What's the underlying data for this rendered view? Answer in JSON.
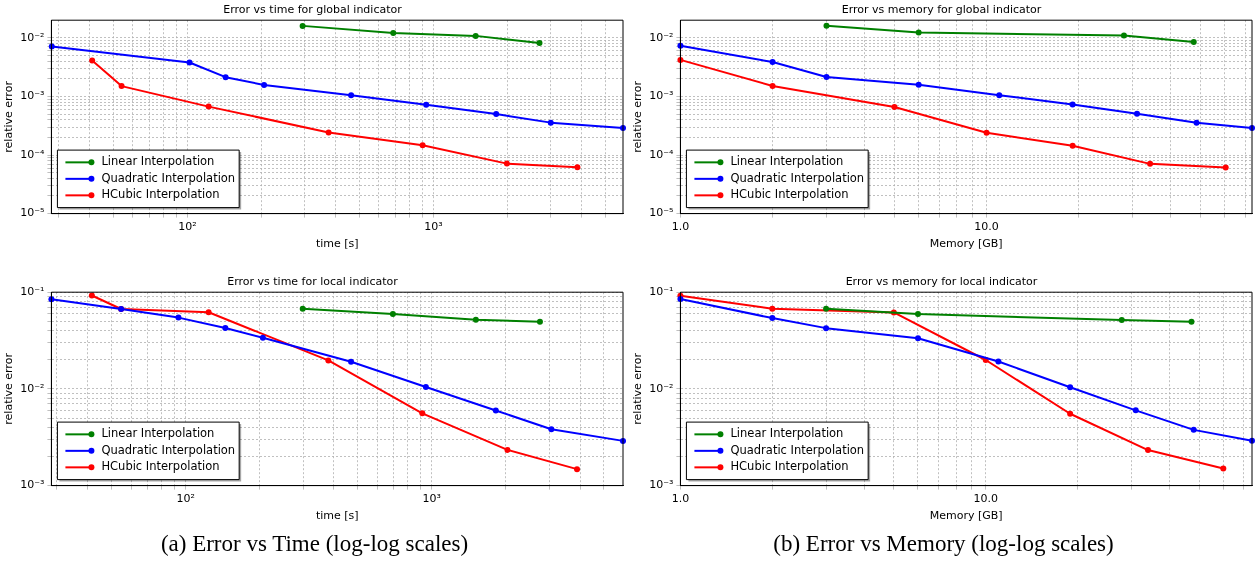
{
  "chart_data": [
    {
      "type": "line",
      "title": "Error vs time for global indicator",
      "xlabel": "time [s]",
      "ylabel": "relative error",
      "log": "xy",
      "grid": true,
      "legend": "bottom left",
      "marker": "circle",
      "line_style": "solid",
      "xlim": [
        28,
        5900
      ],
      "ylim": [
        1e-05,
        0.02
      ],
      "xticks": [
        {
          "value": 30,
          "label": null
        },
        {
          "value": 40,
          "label": null
        },
        {
          "value": 50,
          "label": null
        },
        {
          "value": 60,
          "label": null
        },
        {
          "value": 70,
          "label": null
        },
        {
          "value": 80,
          "label": null
        },
        {
          "value": 90,
          "label": null
        },
        {
          "value": 100,
          "label": "10²"
        },
        {
          "value": 200,
          "label": null
        },
        {
          "value": 300,
          "label": null
        },
        {
          "value": 400,
          "label": null
        },
        {
          "value": 500,
          "label": null
        },
        {
          "value": 600,
          "label": null
        },
        {
          "value": 700,
          "label": null
        },
        {
          "value": 800,
          "label": null
        },
        {
          "value": 900,
          "label": null
        },
        {
          "value": 1000,
          "label": "10³"
        },
        {
          "value": 2000,
          "label": null
        },
        {
          "value": 3000,
          "label": null
        },
        {
          "value": 4000,
          "label": null
        },
        {
          "value": 5000,
          "label": null
        }
      ],
      "yticks": [
        {
          "value": 1e-05,
          "label": "10⁻⁵"
        },
        {
          "value": 2e-05,
          "label": null
        },
        {
          "value": 3e-05,
          "label": null
        },
        {
          "value": 4e-05,
          "label": null
        },
        {
          "value": 5e-05,
          "label": null
        },
        {
          "value": 6e-05,
          "label": null
        },
        {
          "value": 7e-05,
          "label": null
        },
        {
          "value": 8e-05,
          "label": null
        },
        {
          "value": 9e-05,
          "label": null
        },
        {
          "value": 0.0001,
          "label": "10⁻⁴"
        },
        {
          "value": 0.0002,
          "label": null
        },
        {
          "value": 0.0003,
          "label": null
        },
        {
          "value": 0.0004,
          "label": null
        },
        {
          "value": 0.0005,
          "label": null
        },
        {
          "value": 0.0006,
          "label": null
        },
        {
          "value": 0.0007,
          "label": null
        },
        {
          "value": 0.0008,
          "label": null
        },
        {
          "value": 0.0009,
          "label": null
        },
        {
          "value": 0.001,
          "label": "10⁻³"
        },
        {
          "value": 0.002,
          "label": null
        },
        {
          "value": 0.003,
          "label": null
        },
        {
          "value": 0.004,
          "label": null
        },
        {
          "value": 0.005,
          "label": null
        },
        {
          "value": 0.006,
          "label": null
        },
        {
          "value": 0.007,
          "label": null
        },
        {
          "value": 0.008,
          "label": null
        },
        {
          "value": 0.009,
          "label": null
        },
        {
          "value": 0.01,
          "label": "10⁻²"
        }
      ],
      "series": [
        {
          "name": "Linear Interpolation",
          "color": "#008000",
          "x": [
            294,
            687,
            1486,
            2700
          ],
          "values": [
            0.016,
            0.0121,
            0.0108,
            0.0082
          ]
        },
        {
          "name": "Quadratic Interpolation",
          "color": "#0000ff",
          "x": [
            28.1,
            102,
            143,
            205,
            463,
            935,
            1800,
            3000,
            5900
          ],
          "values": [
            0.0071,
            0.0038,
            0.00213,
            0.00157,
            0.00105,
            0.00072,
            0.0005,
            0.000357,
            0.00029
          ]
        },
        {
          "name": "HCubic Interpolation",
          "color": "#ff0000",
          "x": [
            41,
            54,
            122,
            375,
            904,
            1990,
            3850
          ],
          "values": [
            0.0041,
            0.0015,
            0.00067,
            0.000243,
            0.000147,
            7.13e-05,
            6.17e-05
          ]
        }
      ]
    },
    {
      "type": "line",
      "title": "Error vs memory for global indicator",
      "xlabel": "Memory [GB]",
      "ylabel": "relative error",
      "log": "xy",
      "grid": true,
      "legend": "bottom left",
      "marker": "circle",
      "line_style": "solid",
      "xlim": [
        1,
        73.6
      ],
      "ylim": [
        1e-05,
        0.02
      ],
      "xticks": [
        {
          "value": 1,
          "label": "1.0"
        },
        {
          "value": 2,
          "label": null
        },
        {
          "value": 3,
          "label": null
        },
        {
          "value": 4,
          "label": null
        },
        {
          "value": 5,
          "label": null
        },
        {
          "value": 6,
          "label": null
        },
        {
          "value": 7,
          "label": null
        },
        {
          "value": 8,
          "label": null
        },
        {
          "value": 9,
          "label": null
        },
        {
          "value": 10,
          "label": "10.0"
        },
        {
          "value": 20,
          "label": null
        },
        {
          "value": 30,
          "label": null
        },
        {
          "value": 40,
          "label": null
        },
        {
          "value": 50,
          "label": null
        },
        {
          "value": 60,
          "label": null
        },
        {
          "value": 70,
          "label": null
        }
      ],
      "yticks": [
        {
          "value": 1e-05,
          "label": "10⁻⁵"
        },
        {
          "value": 2e-05,
          "label": null
        },
        {
          "value": 3e-05,
          "label": null
        },
        {
          "value": 4e-05,
          "label": null
        },
        {
          "value": 5e-05,
          "label": null
        },
        {
          "value": 6e-05,
          "label": null
        },
        {
          "value": 7e-05,
          "label": null
        },
        {
          "value": 8e-05,
          "label": null
        },
        {
          "value": 9e-05,
          "label": null
        },
        {
          "value": 0.0001,
          "label": "10⁻⁴"
        },
        {
          "value": 0.0002,
          "label": null
        },
        {
          "value": 0.0003,
          "label": null
        },
        {
          "value": 0.0004,
          "label": null
        },
        {
          "value": 0.0005,
          "label": null
        },
        {
          "value": 0.0006,
          "label": null
        },
        {
          "value": 0.0007,
          "label": null
        },
        {
          "value": 0.0008,
          "label": null
        },
        {
          "value": 0.0009,
          "label": null
        },
        {
          "value": 0.001,
          "label": "10⁻³"
        },
        {
          "value": 0.002,
          "label": null
        },
        {
          "value": 0.003,
          "label": null
        },
        {
          "value": 0.004,
          "label": null
        },
        {
          "value": 0.005,
          "label": null
        },
        {
          "value": 0.006,
          "label": null
        },
        {
          "value": 0.007,
          "label": null
        },
        {
          "value": 0.008,
          "label": null
        },
        {
          "value": 0.009,
          "label": null
        },
        {
          "value": 0.01,
          "label": "10⁻²"
        }
      ],
      "series": [
        {
          "name": "Linear Interpolation",
          "color": "#008000",
          "x": [
            3,
            6,
            28.1,
            47.5
          ],
          "values": [
            0.0161,
            0.0123,
            0.011,
            0.0085
          ]
        },
        {
          "name": "Quadratic Interpolation",
          "color": "#0000ff",
          "x": [
            1,
            2,
            3,
            6,
            11,
            19.1,
            31,
            48.5,
            73.6
          ],
          "values": [
            0.0073,
            0.00386,
            0.00214,
            0.00158,
            0.00105,
            0.00073,
            0.000505,
            0.000356,
            0.00029
          ]
        },
        {
          "name": "HCubic Interpolation",
          "color": "#ff0000",
          "x": [
            1,
            2,
            5,
            10,
            19.1,
            34.2,
            60.4
          ],
          "values": [
            0.0042,
            0.00151,
            0.00066,
            0.00024,
            0.000144,
            7.06e-05,
            6.11e-05
          ]
        }
      ]
    },
    {
      "type": "line",
      "title": "Error vs time for local indicator",
      "xlabel": "time [s]",
      "ylabel": "relative error",
      "log": "xy",
      "grid": true,
      "legend": "bottom left",
      "marker": "circle",
      "line_style": "solid",
      "annotations": [
        "(a) Error vs Time (log-log scales)"
      ],
      "xlim": [
        28.5,
        5980
      ],
      "ylim": [
        0.001,
        0.1
      ],
      "xticks": [
        {
          "value": 30,
          "label": null
        },
        {
          "value": 40,
          "label": null
        },
        {
          "value": 50,
          "label": null
        },
        {
          "value": 60,
          "label": null
        },
        {
          "value": 70,
          "label": null
        },
        {
          "value": 80,
          "label": null
        },
        {
          "value": 90,
          "label": null
        },
        {
          "value": 100,
          "label": "10²"
        },
        {
          "value": 200,
          "label": null
        },
        {
          "value": 300,
          "label": null
        },
        {
          "value": 400,
          "label": null
        },
        {
          "value": 500,
          "label": null
        },
        {
          "value": 600,
          "label": null
        },
        {
          "value": 700,
          "label": null
        },
        {
          "value": 800,
          "label": null
        },
        {
          "value": 900,
          "label": null
        },
        {
          "value": 1000,
          "label": "10³"
        },
        {
          "value": 2000,
          "label": null
        },
        {
          "value": 3000,
          "label": null
        },
        {
          "value": 4000,
          "label": null
        },
        {
          "value": 5000,
          "label": null
        }
      ],
      "yticks": [
        {
          "value": 0.001,
          "label": "10⁻³"
        },
        {
          "value": 0.002,
          "label": null
        },
        {
          "value": 0.003,
          "label": null
        },
        {
          "value": 0.004,
          "label": null
        },
        {
          "value": 0.005,
          "label": null
        },
        {
          "value": 0.006,
          "label": null
        },
        {
          "value": 0.007,
          "label": null
        },
        {
          "value": 0.008,
          "label": null
        },
        {
          "value": 0.009,
          "label": null
        },
        {
          "value": 0.01,
          "label": "10⁻²"
        },
        {
          "value": 0.02,
          "label": null
        },
        {
          "value": 0.03,
          "label": null
        },
        {
          "value": 0.04,
          "label": null
        },
        {
          "value": 0.05,
          "label": null
        },
        {
          "value": 0.06,
          "label": null
        },
        {
          "value": 0.07,
          "label": null
        },
        {
          "value": 0.08,
          "label": null
        },
        {
          "value": 0.09,
          "label": null
        },
        {
          "value": 0.1,
          "label": "10⁻¹"
        }
      ],
      "series": [
        {
          "name": "Linear Interpolation",
          "color": "#008000",
          "x": [
            299,
            695,
            1510,
            2750
          ],
          "values": [
            0.0676,
            0.0596,
            0.052,
            0.0495
          ]
        },
        {
          "name": "Quadratic Interpolation",
          "color": "#0000ff",
          "x": [
            28.5,
            54.7,
            93.5,
            145,
            206,
            470,
            946,
            1820,
            3060,
            5980
          ],
          "values": [
            0.0847,
            0.067,
            0.0546,
            0.0427,
            0.0338,
            0.0191,
            0.01045,
            0.00598,
            0.00382,
            0.0029
          ]
        },
        {
          "name": "HCubic Interpolation",
          "color": "#ff0000",
          "x": [
            41.6,
            54.7,
            124,
            380,
            915,
            2030,
            3890
          ],
          "values": [
            0.0925,
            0.067,
            0.062,
            0.0197,
            0.00559,
            0.00234,
            0.00148
          ]
        }
      ]
    },
    {
      "type": "line",
      "title": "Error vs memory for local indicator",
      "xlabel": "Memory [GB]",
      "ylabel": "relative error",
      "log": "xy",
      "grid": true,
      "legend": "bottom left",
      "marker": "circle",
      "line_style": "solid",
      "annotations": [
        "(b) Error vs Memory (log-log scales)"
      ],
      "xlim": [
        1,
        74.5
      ],
      "ylim": [
        0.001,
        0.1
      ],
      "xticks": [
        {
          "value": 1,
          "label": "1.0"
        },
        {
          "value": 2,
          "label": null
        },
        {
          "value": 3,
          "label": null
        },
        {
          "value": 4,
          "label": null
        },
        {
          "value": 5,
          "label": null
        },
        {
          "value": 6,
          "label": null
        },
        {
          "value": 7,
          "label": null
        },
        {
          "value": 8,
          "label": null
        },
        {
          "value": 9,
          "label": null
        },
        {
          "value": 10,
          "label": "10.0"
        },
        {
          "value": 20,
          "label": null
        },
        {
          "value": 30,
          "label": null
        },
        {
          "value": 40,
          "label": null
        },
        {
          "value": 50,
          "label": null
        },
        {
          "value": 60,
          "label": null
        },
        {
          "value": 70,
          "label": null
        }
      ],
      "yticks": [
        {
          "value": 0.001,
          "label": "10⁻³"
        },
        {
          "value": 0.002,
          "label": null
        },
        {
          "value": 0.003,
          "label": null
        },
        {
          "value": 0.004,
          "label": null
        },
        {
          "value": 0.005,
          "label": null
        },
        {
          "value": 0.006,
          "label": null
        },
        {
          "value": 0.007,
          "label": null
        },
        {
          "value": 0.008,
          "label": null
        },
        {
          "value": 0.009,
          "label": null
        },
        {
          "value": 0.01,
          "label": "10⁻²"
        },
        {
          "value": 0.02,
          "label": null
        },
        {
          "value": 0.03,
          "label": null
        },
        {
          "value": 0.04,
          "label": null
        },
        {
          "value": 0.05,
          "label": null
        },
        {
          "value": 0.06,
          "label": null
        },
        {
          "value": 0.07,
          "label": null
        },
        {
          "value": 0.08,
          "label": null
        },
        {
          "value": 0.09,
          "label": null
        },
        {
          "value": 0.1,
          "label": "10⁻¹"
        }
      ],
      "series": [
        {
          "name": "Linear Interpolation",
          "color": "#008000",
          "x": [
            3,
            6,
            27.9,
            47.2
          ],
          "values": [
            0.0674,
            0.0595,
            0.0515,
            0.0496
          ]
        },
        {
          "name": "Quadratic Interpolation",
          "color": "#0000ff",
          "x": [
            1,
            2,
            3,
            6,
            11,
            18.9,
            31,
            48,
            74.5
          ],
          "values": [
            0.0849,
            0.054,
            0.0425,
            0.0334,
            0.0192,
            0.0104,
            0.006,
            0.00377,
            0.00291
          ]
        },
        {
          "name": "HCubic Interpolation",
          "color": "#ff0000",
          "x": [
            1,
            2,
            5,
            10,
            18.9,
            34,
            60
          ],
          "values": [
            0.0917,
            0.0674,
            0.0618,
            0.0199,
            0.00553,
            0.00233,
            0.0015
          ]
        }
      ]
    }
  ]
}
